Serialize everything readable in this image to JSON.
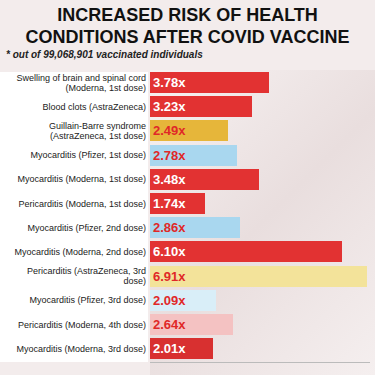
{
  "chart_data": {
    "type": "bar",
    "orientation": "horizontal",
    "title": "INCREASED RISK OF HEALTH CONDITIONS AFTER COVID VACCINE",
    "subtitle": "* out of 99,068,901 vaccinated individuals",
    "categories": [
      "Swelling of brain and spinal cord (Moderna, 1st dose)",
      "Blood clots (AstraZeneca)",
      "Guillain-Barre syndrome (AstraZeneca, 1st dose)",
      "Myocarditis (Pfizer, 1st dose)",
      "Myocarditis (Moderna, 1st dose)",
      "Pericarditis (Moderna, 1st dose)",
      "Myocarditis (Pfizer, 2nd dose)",
      "Myocarditis (Moderna, 2nd dose)",
      "Pericarditis (AstraZeneca, 3rd dose)",
      "Myocarditis (Pfizer, 3rd dose)",
      "Pericarditis (Moderna, 4th dose)",
      "Myocarditis (Moderna, 3rd dose)"
    ],
    "values": [
      3.78,
      3.23,
      2.49,
      2.78,
      3.48,
      1.74,
      2.86,
      6.1,
      6.91,
      2.09,
      2.64,
      2.01
    ],
    "value_labels": [
      "3.78x",
      "3.23x",
      "2.49x",
      "2.78x",
      "3.48x",
      "1.74x",
      "2.86x",
      "6.10x",
      "6.91x",
      "2.09x",
      "2.64x",
      "2.01x"
    ],
    "colors": [
      "#e23232",
      "#e23232",
      "#e6b63a",
      "#a9d7ef",
      "#e23232",
      "#e23232",
      "#a9d7ef",
      "#e23232",
      "#f3e39a",
      "#d9eef8",
      "#f4c2c2",
      "#d83030"
    ],
    "xlim": [
      0,
      7
    ],
    "data_labels": true,
    "tick_labels": false,
    "grid": false
  }
}
